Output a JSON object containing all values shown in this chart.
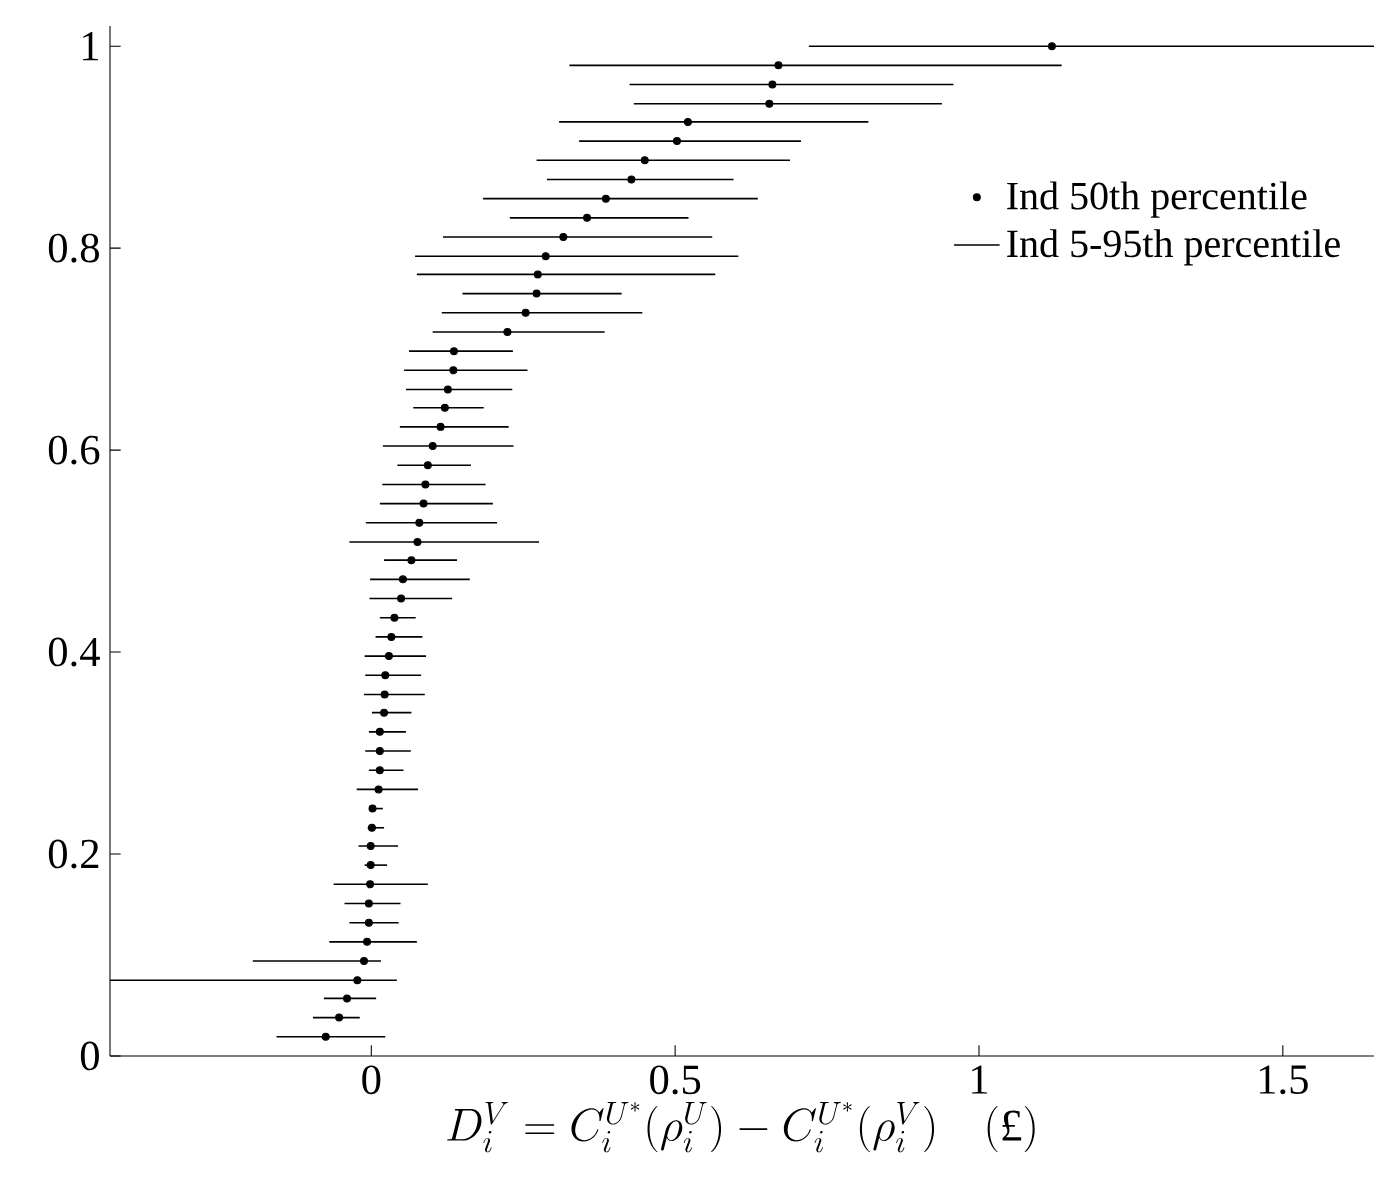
{
  "chart_data": {
    "type": "scatter",
    "xlabel": "D_i^V = C_i^{U^*}(\\rho_i^U) - C_i^{U^*}(\\rho_i^V) \\quad (\\mbox{£})",
    "xlim": [
      -0.43,
      1.65
    ],
    "xticks": [
      0,
      0.5,
      1,
      1.5
    ],
    "ylim": [
      0,
      1.02
    ],
    "yticks": [
      0,
      0.2,
      0.4,
      0.6,
      0.8,
      1
    ],
    "marker": "circle",
    "legend": "top right",
    "annotations": [
      "Ind 5-95th percentile"
    ],
    "series": [
      {
        "name": "Ind 50th percentile",
        "color": "#000000",
        "x": [
          -0.075,
          -0.053,
          -0.04,
          -0.023,
          -0.012,
          -0.007,
          -0.004,
          -0.004,
          -0.002,
          -0.001,
          -0.001,
          0.001,
          0.002,
          0.012,
          0.014,
          0.014,
          0.014,
          0.021,
          0.022,
          0.023,
          0.029,
          0.033,
          0.038,
          0.049,
          0.052,
          0.066,
          0.076,
          0.079,
          0.086,
          0.089,
          0.093,
          0.101,
          0.114,
          0.121,
          0.126,
          0.135,
          0.136,
          0.224,
          0.254,
          0.272,
          0.274,
          0.287,
          0.316,
          0.355,
          0.386,
          0.428,
          0.45,
          0.503,
          0.521,
          0.655,
          0.66,
          0.67,
          1.12
        ],
        "values": [
          0.019,
          0.038,
          0.057,
          0.075,
          0.094,
          0.113,
          0.132,
          0.151,
          0.17,
          0.189,
          0.208,
          0.226,
          0.245,
          0.264,
          0.283,
          0.302,
          0.321,
          0.34,
          0.358,
          0.377,
          0.396,
          0.415,
          0.434,
          0.453,
          0.472,
          0.491,
          0.509,
          0.528,
          0.547,
          0.566,
          0.585,
          0.604,
          0.623,
          0.642,
          0.66,
          0.679,
          0.698,
          0.717,
          0.736,
          0.755,
          0.774,
          0.792,
          0.811,
          0.83,
          0.849,
          0.868,
          0.887,
          0.906,
          0.925,
          0.943,
          0.962,
          0.981,
          1.0
        ],
        "xerrors": [
          [
            -0.156,
            0.023
          ],
          [
            -0.096,
            -0.019
          ],
          [
            -0.078,
            0.008
          ],
          [
            -0.43,
            0.042
          ],
          [
            -0.195,
            0.016
          ],
          [
            -0.069,
            0.075
          ],
          [
            -0.036,
            0.045
          ],
          [
            -0.044,
            0.048
          ],
          [
            -0.062,
            0.093
          ],
          [
            -0.011,
            0.026
          ],
          [
            -0.021,
            0.044
          ],
          [
            -0.006,
            0.021
          ],
          [
            -0.004,
            0.019
          ],
          [
            -0.024,
            0.077
          ],
          [
            -0.004,
            0.053
          ],
          [
            -0.01,
            0.065
          ],
          [
            -0.004,
            0.057
          ],
          [
            0.001,
            0.066
          ],
          [
            -0.012,
            0.088
          ],
          [
            -0.01,
            0.082
          ],
          [
            -0.011,
            0.09
          ],
          [
            0.007,
            0.084
          ],
          [
            0.014,
            0.073
          ],
          [
            -0.003,
            0.133
          ],
          [
            -0.002,
            0.162
          ],
          [
            0.021,
            0.141
          ],
          [
            -0.036,
            0.276
          ],
          [
            -0.009,
            0.207
          ],
          [
            0.014,
            0.2
          ],
          [
            0.018,
            0.188
          ],
          [
            0.043,
            0.164
          ],
          [
            0.019,
            0.234
          ],
          [
            0.047,
            0.226
          ],
          [
            0.069,
            0.185
          ],
          [
            0.057,
            0.232
          ],
          [
            0.054,
            0.257
          ],
          [
            0.062,
            0.233
          ],
          [
            0.101,
            0.384
          ],
          [
            0.116,
            0.446
          ],
          [
            0.15,
            0.412
          ],
          [
            0.075,
            0.566
          ],
          [
            0.072,
            0.604
          ],
          [
            0.118,
            0.561
          ],
          [
            0.228,
            0.522
          ],
          [
            0.184,
            0.636
          ],
          [
            0.289,
            0.596
          ],
          [
            0.272,
            0.689
          ],
          [
            0.342,
            0.707
          ],
          [
            0.309,
            0.818
          ],
          [
            0.432,
            0.939
          ],
          [
            0.425,
            0.958
          ],
          [
            0.326,
            1.136
          ],
          [
            0.72,
            1.65
          ]
        ]
      }
    ]
  }
}
